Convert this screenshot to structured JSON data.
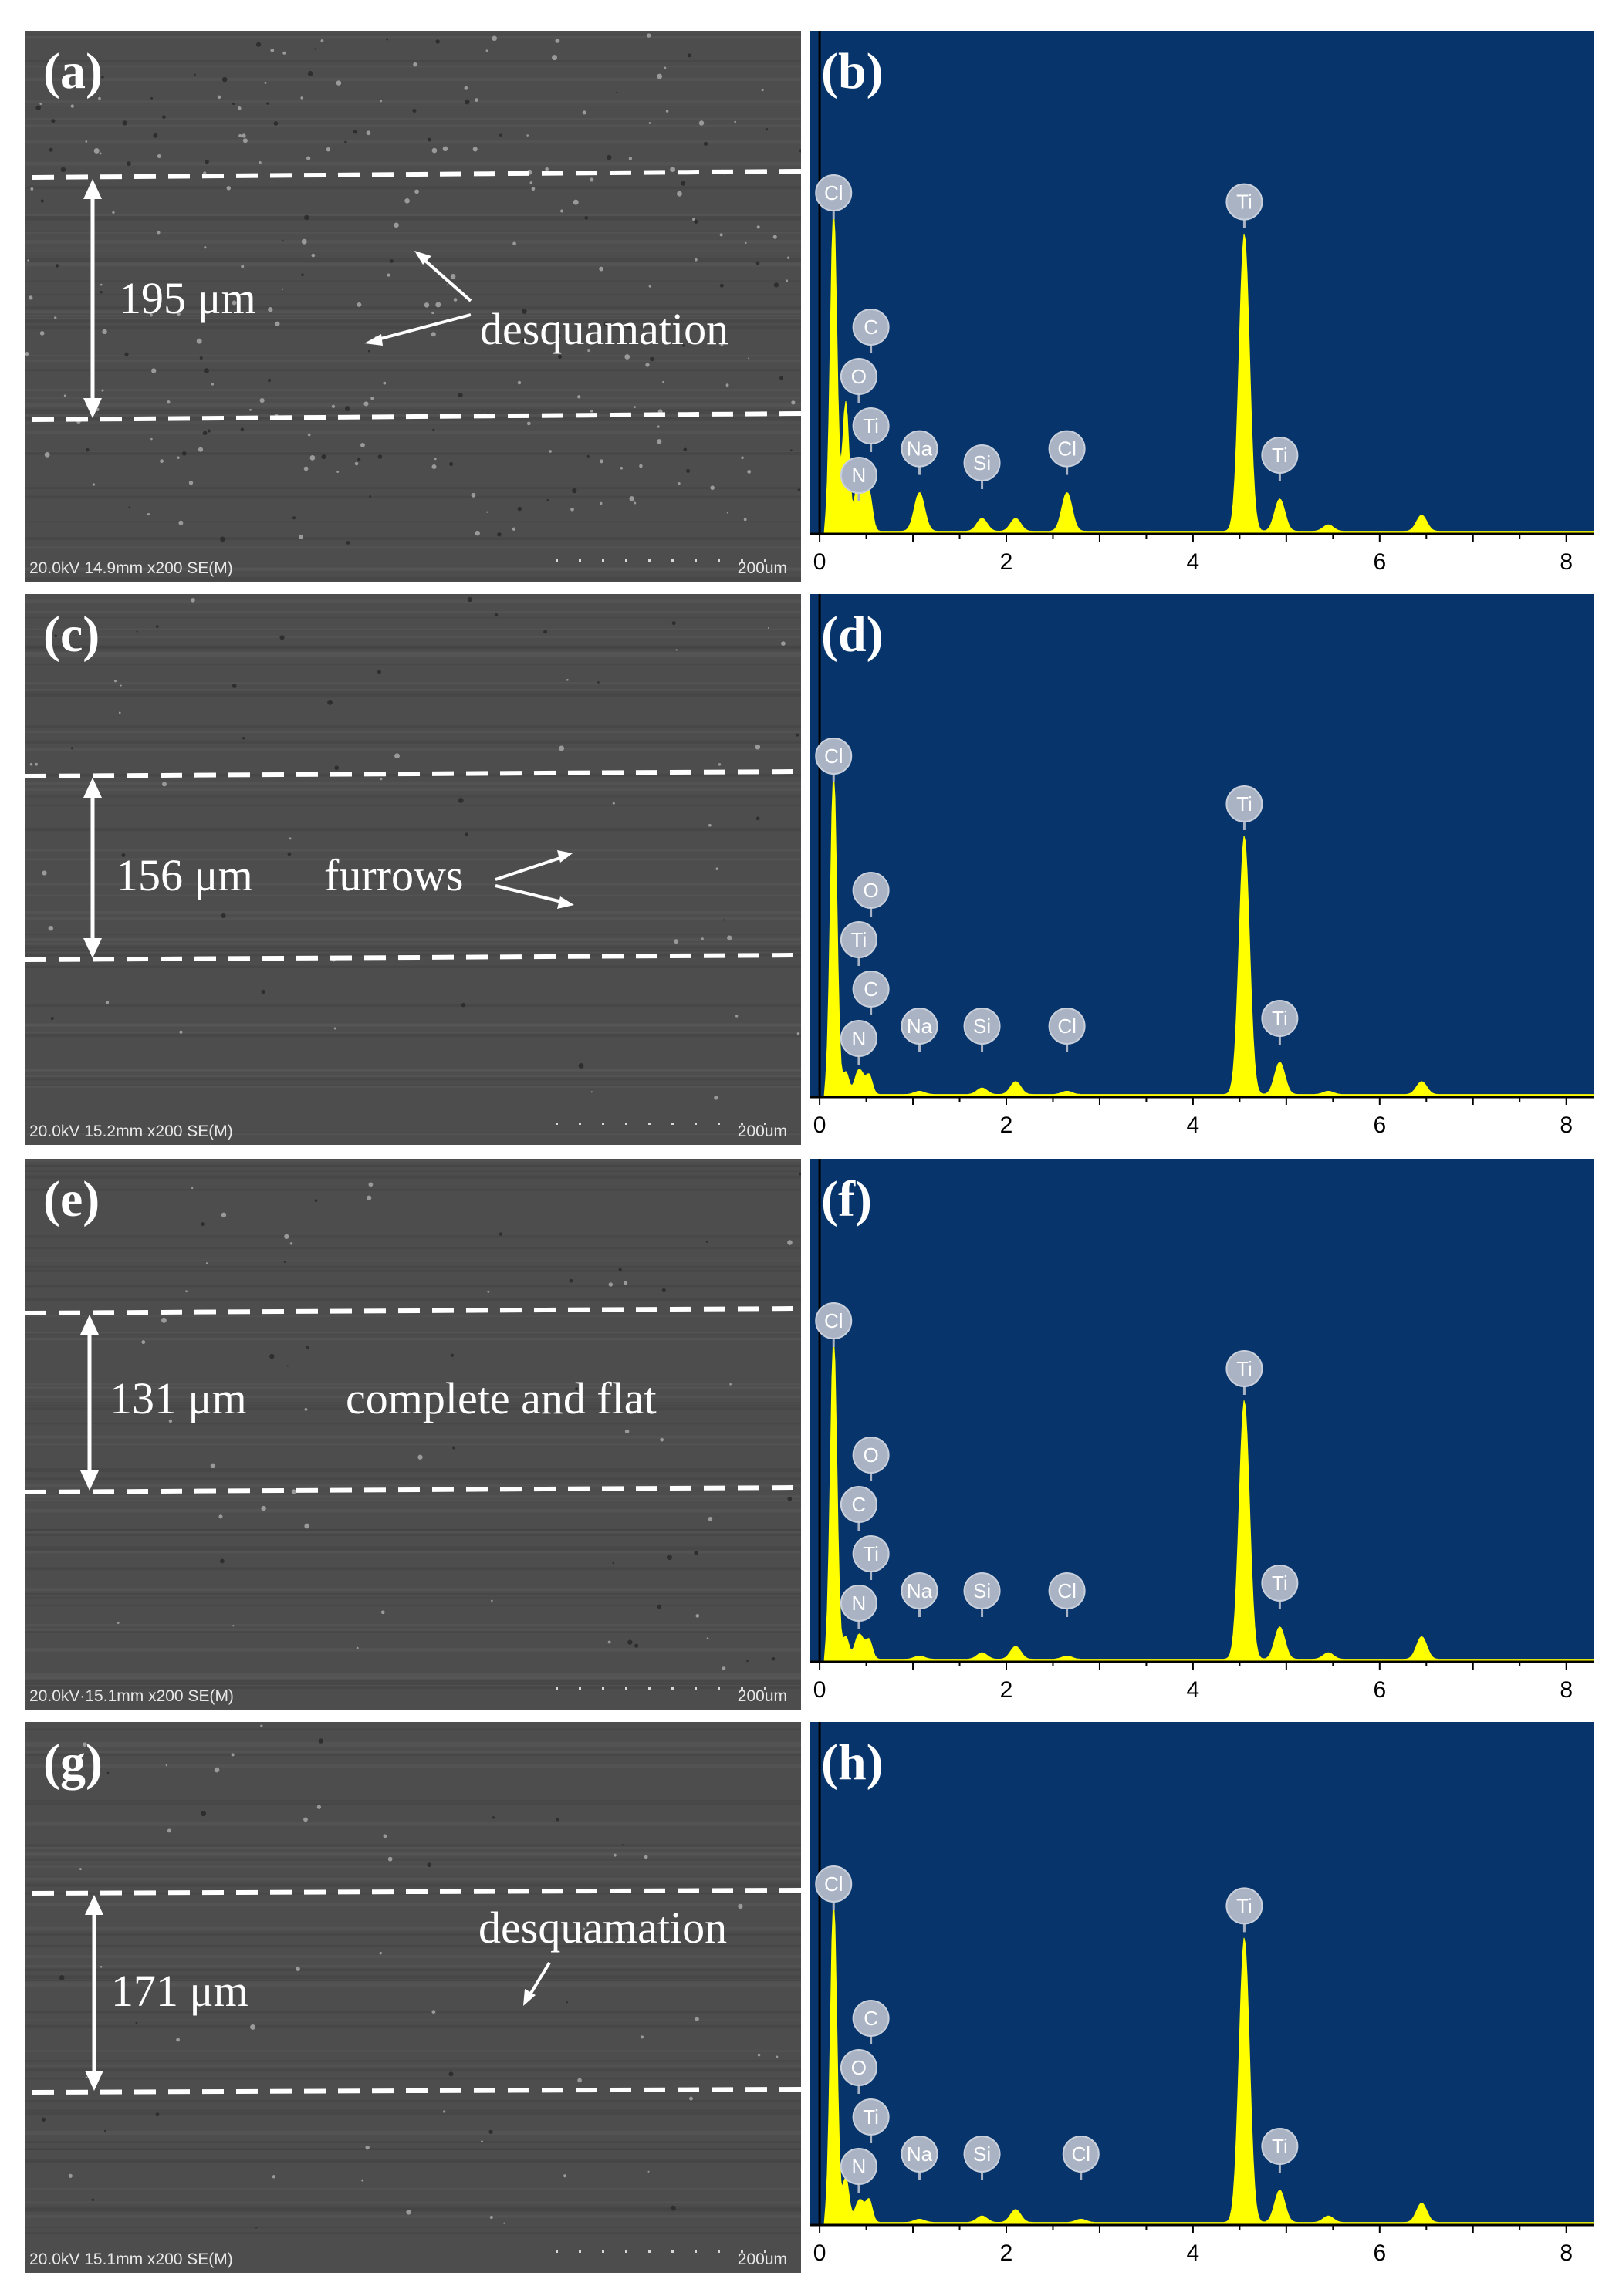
{
  "figure": {
    "panels": [
      {
        "sem": {
          "letter": "(a)",
          "width_label": "195 μm",
          "annotation": "desquamation",
          "info": "20.0kV 14.9mm x200 SE(M)",
          "scale": "200um"
        },
        "eds": {
          "letter": "(b)",
          "peaks": [
            "Cl",
            "C",
            "O",
            "Ti",
            "N",
            "Na",
            "Si",
            "Cl",
            "Ti",
            "Ti"
          ]
        }
      },
      {
        "sem": {
          "letter": "(c)",
          "width_label": "156 μm",
          "annotation": "furrows",
          "info": "20.0kV 15.2mm x200 SE(M)",
          "scale": "200um"
        },
        "eds": {
          "letter": "(d)",
          "peaks": [
            "Cl",
            "O",
            "Ti",
            "C",
            "N",
            "Na",
            "Si",
            "Cl",
            "Ti",
            "Ti"
          ]
        }
      },
      {
        "sem": {
          "letter": "(e)",
          "width_label": "131 μm",
          "annotation": "complete and flat",
          "info": "20.0kV·15.1mm x200 SE(M)",
          "scale": "200um"
        },
        "eds": {
          "letter": "(f)",
          "peaks": [
            "Cl",
            "O",
            "C",
            "Ti",
            "N",
            "Na",
            "Si",
            "Cl",
            "Ti",
            "Ti"
          ]
        }
      },
      {
        "sem": {
          "letter": "(g)",
          "width_label": "171 μm",
          "annotation": "desquamation",
          "info": "20.0kV 15.1mm x200 SE(M)",
          "scale": "200um"
        },
        "eds": {
          "letter": "(h)",
          "peaks": [
            "Cl",
            "C",
            "O",
            "Ti",
            "N",
            "Na",
            "Si",
            "Cl",
            "Ti",
            "Ti"
          ]
        }
      }
    ],
    "eds_axis": {
      "x_ticks": [
        "0",
        "2",
        "4",
        "6",
        "8"
      ],
      "x_range": [
        -0.1,
        8.3
      ]
    },
    "colors": {
      "eds_background": "#07346a",
      "eds_trace": "#ffff00",
      "peak_marker": "#a9b3c4",
      "sem_background": "#4d4d4d"
    }
  },
  "chart_data": [
    {
      "type": "area",
      "panel": "(b)",
      "xlim": [
        -0.1,
        8.3
      ],
      "x_ticks": [
        0,
        2,
        4,
        6,
        8
      ],
      "peaks": [
        {
          "element": "Cl",
          "x": 0.15,
          "intensity": 1.0
        },
        {
          "element": "C",
          "x": 0.28,
          "intensity": 0.4
        },
        {
          "element": "O",
          "x": 0.53,
          "intensity": 0.12
        },
        {
          "element": "Ti",
          "x": 0.45,
          "intensity": 0.15
        },
        {
          "element": "N",
          "x": 0.4,
          "intensity": 0.1
        },
        {
          "element": "Na",
          "x": 1.07,
          "intensity": 0.12
        },
        {
          "element": "Si",
          "x": 1.74,
          "intensity": 0.04
        },
        {
          "element": "Cl",
          "x": 2.65,
          "intensity": 0.12
        },
        {
          "element": "Ti",
          "x": 4.55,
          "intensity": 0.92
        },
        {
          "element": "Ti",
          "x": 4.93,
          "intensity": 0.1
        }
      ],
      "minor_peaks": [
        {
          "x": 2.1,
          "intensity": 0.04
        },
        {
          "x": 5.45,
          "intensity": 0.02
        },
        {
          "x": 6.45,
          "intensity": 0.05
        }
      ]
    },
    {
      "type": "area",
      "panel": "(d)",
      "xlim": [
        -0.1,
        8.3
      ],
      "x_ticks": [
        0,
        2,
        4,
        6,
        8
      ],
      "peaks": [
        {
          "element": "Cl",
          "x": 0.15,
          "intensity": 1.0
        },
        {
          "element": "O",
          "x": 0.53,
          "intensity": 0.06
        },
        {
          "element": "Ti",
          "x": 0.45,
          "intensity": 0.05
        },
        {
          "element": "C",
          "x": 0.28,
          "intensity": 0.07
        },
        {
          "element": "N",
          "x": 0.4,
          "intensity": 0.05
        },
        {
          "element": "Na",
          "x": 1.07,
          "intensity": 0.01
        },
        {
          "element": "Si",
          "x": 1.74,
          "intensity": 0.02
        },
        {
          "element": "Cl",
          "x": 2.65,
          "intensity": 0.01
        },
        {
          "element": "Ti",
          "x": 4.55,
          "intensity": 0.8
        },
        {
          "element": "Ti",
          "x": 4.93,
          "intensity": 0.1
        }
      ],
      "minor_peaks": [
        {
          "x": 2.1,
          "intensity": 0.04
        },
        {
          "x": 5.45,
          "intensity": 0.01
        },
        {
          "x": 6.45,
          "intensity": 0.04
        }
      ]
    },
    {
      "type": "area",
      "panel": "(f)",
      "xlim": [
        -0.1,
        8.3
      ],
      "x_ticks": [
        0,
        2,
        4,
        6,
        8
      ],
      "peaks": [
        {
          "element": "Cl",
          "x": 0.15,
          "intensity": 1.0
        },
        {
          "element": "O",
          "x": 0.53,
          "intensity": 0.06
        },
        {
          "element": "C",
          "x": 0.28,
          "intensity": 0.07
        },
        {
          "element": "Ti",
          "x": 0.45,
          "intensity": 0.05
        },
        {
          "element": "N",
          "x": 0.4,
          "intensity": 0.05
        },
        {
          "element": "Na",
          "x": 1.07,
          "intensity": 0.01
        },
        {
          "element": "Si",
          "x": 1.74,
          "intensity": 0.02
        },
        {
          "element": "Cl",
          "x": 2.65,
          "intensity": 0.01
        },
        {
          "element": "Ti",
          "x": 4.55,
          "intensity": 0.8
        },
        {
          "element": "Ti",
          "x": 4.93,
          "intensity": 0.1
        }
      ],
      "minor_peaks": [
        {
          "x": 2.1,
          "intensity": 0.04
        },
        {
          "x": 5.45,
          "intensity": 0.02
        },
        {
          "x": 6.45,
          "intensity": 0.07
        }
      ]
    },
    {
      "type": "area",
      "panel": "(h)",
      "xlim": [
        -0.1,
        8.3
      ],
      "x_ticks": [
        0,
        2,
        4,
        6,
        8
      ],
      "peaks": [
        {
          "element": "Cl",
          "x": 0.15,
          "intensity": 1.0
        },
        {
          "element": "C",
          "x": 0.28,
          "intensity": 0.14
        },
        {
          "element": "O",
          "x": 0.53,
          "intensity": 0.07
        },
        {
          "element": "Ti",
          "x": 0.45,
          "intensity": 0.05
        },
        {
          "element": "N",
          "x": 0.4,
          "intensity": 0.04
        },
        {
          "element": "Na",
          "x": 1.07,
          "intensity": 0.01
        },
        {
          "element": "Si",
          "x": 1.74,
          "intensity": 0.02
        },
        {
          "element": "Cl",
          "x": 2.8,
          "intensity": 0.01
        },
        {
          "element": "Ti",
          "x": 4.55,
          "intensity": 0.88
        },
        {
          "element": "Ti",
          "x": 4.93,
          "intensity": 0.1
        }
      ],
      "minor_peaks": [
        {
          "x": 2.1,
          "intensity": 0.04
        },
        {
          "x": 5.45,
          "intensity": 0.02
        },
        {
          "x": 6.45,
          "intensity": 0.06
        }
      ]
    }
  ]
}
